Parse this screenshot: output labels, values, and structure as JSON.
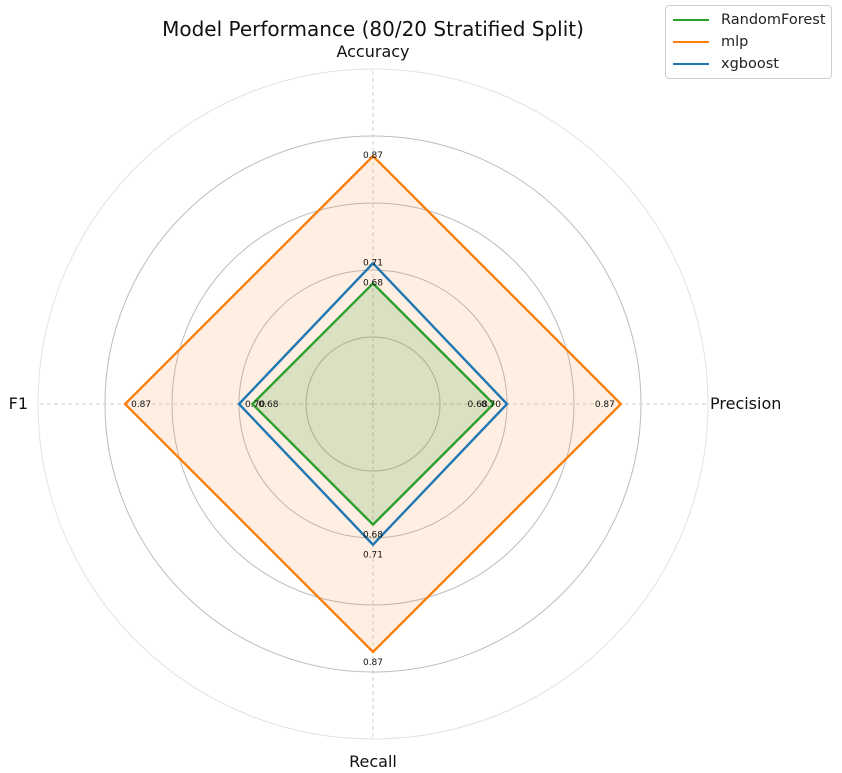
{
  "chart_data": {
    "type": "radar",
    "title": "Model Performance (80/20 Stratified Split)",
    "axes": [
      "Accuracy",
      "Precision",
      "Recall",
      "F1"
    ],
    "rlim": [
      0.5,
      1.0
    ],
    "grid": true,
    "legend_position": "top-right",
    "series": [
      {
        "name": "RandomForest",
        "color": "#2ca02c",
        "values": [
          0.68,
          0.68,
          0.68,
          0.68
        ],
        "labels": [
          "0.68",
          "0.68",
          "0.68",
          "0.68"
        ],
        "fill": true
      },
      {
        "name": "mlp",
        "color": "#ff7f0e",
        "values": [
          0.87,
          0.87,
          0.87,
          0.87
        ],
        "labels": [
          "0.87",
          "0.87",
          "0.87",
          "0.87"
        ],
        "fill": true
      },
      {
        "name": "xgboost",
        "color": "#1f77b4",
        "values": [
          0.71,
          0.7,
          0.71,
          0.7
        ],
        "labels": [
          "0.71",
          "0.70",
          "0.71",
          "0.70"
        ],
        "fill": false
      }
    ]
  }
}
